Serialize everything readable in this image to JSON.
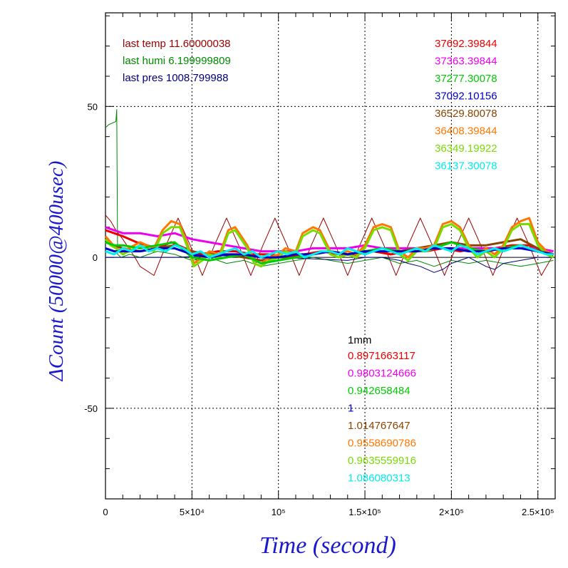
{
  "chart_data": {
    "type": "line",
    "xlabel": "Time (second)",
    "ylabel": "ΔCount (50000@400usec)",
    "xlim": [
      0,
      260000
    ],
    "ylim": [
      -80,
      81
    ],
    "grid": "dotted",
    "x_tick_labels": [
      {
        "value": 0,
        "label": "0"
      },
      {
        "value": 50000,
        "label": "5×10⁴"
      },
      {
        "value": 100000,
        "label": "10⁵"
      },
      {
        "value": 150000,
        "label": "1.5×10⁵"
      },
      {
        "value": 200000,
        "label": "2×10⁵"
      },
      {
        "value": 250000,
        "label": "2.5×10⁵"
      }
    ],
    "y_tick_labels": [
      {
        "value": 50,
        "label": "50"
      },
      {
        "value": 0,
        "label": "0"
      },
      {
        "value": -50,
        "label": "-50"
      }
    ],
    "environment_labels": [
      {
        "text": "last temp 11.60000038",
        "color": "#990000"
      },
      {
        "text": "last humi 6.199999809",
        "color": "#008800"
      },
      {
        "text": "last pres 1008.799988",
        "color": "#000077"
      }
    ],
    "counts_legend": [
      {
        "text": "37692.39844",
        "color": "#ee0000"
      },
      {
        "text": "37363.39844",
        "color": "#ee00ee"
      },
      {
        "text": "37277.30078",
        "color": "#00cc00"
      },
      {
        "text": "37092.10156",
        "color": "#0000cc"
      },
      {
        "text": "36529.80078",
        "color": "#884400"
      },
      {
        "text": "36408.39844",
        "color": "#ff7700"
      },
      {
        "text": "36349.19922",
        "color": "#77dd00"
      },
      {
        "text": "36137.30078",
        "color": "#00eeee"
      }
    ],
    "factor_header": {
      "text": "1mm",
      "color": "#000000"
    },
    "factor_legend": [
      {
        "text": "0.8971663117",
        "color": "#ee0000"
      },
      {
        "text": "0.9803124666",
        "color": "#ee00ee"
      },
      {
        "text": "0.942658484",
        "color": "#00cc00"
      },
      {
        "text": "1",
        "color": "#0000cc"
      },
      {
        "text": "1.014767647",
        "color": "#884400"
      },
      {
        "text": "0.9558690786",
        "color": "#ff7700"
      },
      {
        "text": "0.9635559916",
        "color": "#77dd00"
      },
      {
        "text": "1.086080313",
        "color": "#00eeee"
      }
    ],
    "series": [
      {
        "color": "#990000",
        "x": [
          0,
          3000,
          6000,
          10000,
          17000,
          20000,
          28000,
          35000,
          42000,
          49000,
          56000,
          63000,
          70000,
          77000,
          84000,
          91000,
          98000,
          105000,
          112000,
          119000,
          126000,
          133000,
          140000,
          147000,
          154000,
          161000,
          168000,
          175000,
          182000,
          189000,
          196000,
          203000,
          210000,
          217000,
          224000,
          231000,
          238000,
          245000,
          252000,
          259000
        ],
        "y": [
          14,
          12,
          9,
          6,
          0,
          -3,
          -6,
          4,
          13,
          4,
          -6,
          4,
          13,
          4,
          -6,
          4,
          13,
          4,
          -6,
          4,
          13,
          4,
          -6,
          4,
          13,
          4,
          -6,
          4,
          13,
          4,
          -6,
          4,
          13,
          4,
          -6,
          4,
          13,
          4,
          -6,
          1
        ]
      },
      {
        "color": "#008800",
        "x": [
          0,
          2000,
          6000,
          6500,
          7000,
          9000,
          14000,
          20000,
          30000,
          40000,
          50000,
          60000,
          70000,
          80000,
          90000,
          100000,
          110000,
          120000,
          130000,
          140000,
          150000,
          160000,
          170000,
          180000,
          190000,
          200000,
          210000,
          220000,
          230000,
          240000,
          250000,
          259000
        ],
        "y": [
          43,
          44,
          45,
          49,
          1,
          0,
          1,
          0,
          2,
          1,
          -1,
          0,
          -2,
          -1,
          -3,
          -2,
          -1,
          0,
          -1,
          -2,
          -1,
          0,
          -2,
          -1,
          -3,
          -1,
          -2,
          -1,
          -2,
          -3,
          -2,
          -1
        ]
      },
      {
        "color": "#000077",
        "x": [
          0,
          20000,
          40000,
          60000,
          80000,
          100000,
          120000,
          140000,
          150000,
          160000,
          170000,
          175000,
          182000,
          190000,
          195000,
          200000,
          210000,
          220000,
          225000,
          230000,
          240000,
          250000,
          259000
        ],
        "y": [
          0,
          0,
          0,
          0.5,
          0.5,
          0,
          -0.5,
          -1,
          0,
          0,
          -1,
          -2,
          -3,
          -5,
          -4,
          -2,
          0,
          -3,
          -4,
          -2,
          -1,
          0,
          0
        ]
      },
      {
        "color": "#ee0000",
        "x": [
          0,
          5000,
          10000,
          18000,
          30000,
          38000,
          46000,
          55000,
          65000,
          75000,
          85000,
          95000,
          105000,
          115000,
          125000,
          135000,
          145000,
          155000,
          165000,
          175000,
          185000,
          195000,
          205000,
          215000,
          225000,
          235000,
          245000,
          252000,
          259000
        ],
        "y": [
          9,
          8,
          7,
          5,
          3,
          5,
          3,
          1,
          2,
          2,
          1,
          1,
          0,
          1,
          2,
          1,
          1,
          2,
          1,
          2,
          2,
          3,
          2,
          3,
          3,
          4,
          4,
          2,
          1
        ]
      },
      {
        "color": "#ee00ee",
        "x": [
          0,
          5000,
          10000,
          20000,
          30000,
          40000,
          50000,
          60000,
          70000,
          80000,
          90000,
          100000,
          110000,
          120000,
          130000,
          140000,
          150000,
          160000,
          170000,
          180000,
          190000,
          200000,
          210000,
          220000,
          230000,
          240000,
          250000,
          259000
        ],
        "y": [
          10,
          9,
          8,
          8,
          7,
          8,
          6,
          5,
          4,
          3,
          2,
          2,
          2,
          3,
          3,
          3,
          4,
          3,
          3,
          3,
          3,
          3,
          3,
          3,
          3,
          3,
          3,
          2
        ]
      },
      {
        "color": "#884400",
        "x": [
          0,
          5000,
          10000,
          20000,
          30000,
          40000,
          50000,
          60000,
          70000,
          80000,
          90000,
          100000,
          110000,
          120000,
          130000,
          140000,
          150000,
          160000,
          170000,
          180000,
          190000,
          200000,
          210000,
          220000,
          230000,
          240000,
          250000,
          259000
        ],
        "y": [
          5,
          4,
          3,
          2,
          3,
          4,
          2,
          1,
          1,
          0,
          -1,
          0,
          0,
          1,
          2,
          1,
          2,
          3,
          2,
          3,
          4,
          5,
          4,
          4,
          5,
          6,
          3,
          1
        ]
      },
      {
        "color": "#ff7700",
        "x": [
          0,
          3000,
          6000,
          10000,
          20000,
          28000,
          33000,
          38000,
          43000,
          47000,
          51000,
          56000,
          60000,
          66000,
          71000,
          75000,
          82000,
          86000,
          90000,
          95000,
          100000,
          104000,
          110000,
          114000,
          120000,
          124000,
          130000,
          135000,
          140000,
          145000,
          150000,
          155000,
          160000,
          165000,
          170000,
          175000,
          180000,
          185000,
          190000,
          195000,
          200000,
          205000,
          210000,
          215000,
          220000,
          225000,
          230000,
          235000,
          240000,
          245000,
          250000,
          255000,
          259000
        ],
        "y": [
          7,
          5,
          3,
          2,
          5,
          3,
          9,
          12,
          11,
          5,
          -2,
          0,
          2,
          1,
          9,
          10,
          4,
          -1,
          -2,
          0,
          1,
          3,
          2,
          8,
          10,
          9,
          2,
          1,
          2,
          1,
          4,
          10,
          11,
          10,
          2,
          0,
          3,
          3,
          4,
          11,
          12,
          10,
          4,
          1,
          3,
          1,
          4,
          10,
          12,
          13,
          5,
          2,
          1
        ]
      },
      {
        "color": "#77dd00",
        "x": [
          0,
          3000,
          6000,
          10000,
          20000,
          28000,
          33000,
          38000,
          43000,
          47000,
          51000,
          56000,
          60000,
          66000,
          71000,
          75000,
          82000,
          86000,
          90000,
          95000,
          100000,
          104000,
          110000,
          114000,
          120000,
          124000,
          130000,
          135000,
          140000,
          145000,
          150000,
          155000,
          160000,
          165000,
          170000,
          175000,
          180000,
          185000,
          190000,
          195000,
          200000,
          205000,
          210000,
          215000,
          220000,
          225000,
          230000,
          235000,
          240000,
          245000,
          250000,
          255000,
          259000
        ],
        "y": [
          6,
          4,
          3,
          1,
          4,
          2,
          8,
          10,
          10,
          4,
          -3,
          -1,
          1,
          0,
          8,
          9,
          3,
          -2,
          -3,
          -1,
          0,
          2,
          1,
          7,
          9,
          8,
          1,
          0,
          1,
          0,
          3,
          9,
          10,
          9,
          1,
          -1,
          2,
          2,
          3,
          10,
          11,
          9,
          3,
          0,
          2,
          0,
          3,
          9,
          11,
          11,
          4,
          1,
          0
        ]
      },
      {
        "color": "#00cc00",
        "x": [
          0,
          5000,
          10000,
          20000,
          30000,
          40000,
          50000,
          60000,
          70000,
          80000,
          90000,
          100000,
          110000,
          120000,
          130000,
          140000,
          150000,
          160000,
          170000,
          180000,
          190000,
          200000,
          210000,
          220000,
          230000,
          240000,
          250000,
          259000
        ],
        "y": [
          5,
          4,
          4,
          3,
          4,
          5,
          0,
          -1,
          0,
          1,
          -2,
          -1,
          0,
          1,
          2,
          1,
          2,
          3,
          2,
          2,
          3,
          5,
          3,
          2,
          3,
          4,
          2,
          1
        ]
      },
      {
        "color": "#0000cc",
        "x": [
          0,
          5000,
          10000,
          20000,
          30000,
          40000,
          50000,
          60000,
          70000,
          80000,
          90000,
          100000,
          110000,
          120000,
          130000,
          140000,
          150000,
          160000,
          170000,
          180000,
          190000,
          200000,
          210000,
          220000,
          230000,
          240000,
          250000,
          259000
        ],
        "y": [
          3,
          2,
          2,
          2,
          3,
          3,
          1,
          0,
          1,
          1,
          0,
          0,
          1,
          1,
          2,
          1,
          2,
          2,
          2,
          2,
          3,
          3,
          2,
          2,
          3,
          3,
          2,
          1
        ]
      },
      {
        "color": "#00eeee",
        "x": [
          0,
          5000,
          10000,
          15000,
          20000,
          25000,
          30000,
          35000,
          40000,
          45000,
          50000,
          55000,
          60000,
          65000,
          70000,
          75000,
          80000,
          85000,
          90000,
          95000,
          100000,
          105000,
          110000,
          115000,
          120000,
          125000,
          130000,
          135000,
          140000,
          145000,
          150000,
          155000,
          160000,
          165000,
          170000,
          175000,
          180000,
          185000,
          190000,
          195000,
          200000,
          205000,
          210000,
          215000,
          220000,
          225000,
          230000,
          235000,
          240000,
          245000,
          250000,
          255000,
          259000
        ],
        "y": [
          2,
          1,
          3,
          2,
          4,
          2,
          3,
          2,
          4,
          3,
          1,
          2,
          0,
          1,
          2,
          3,
          1,
          2,
          0,
          1,
          2,
          1,
          2,
          0,
          1,
          2,
          2,
          1,
          3,
          2,
          1,
          2,
          3,
          2,
          1,
          2,
          3,
          2,
          4,
          3,
          2,
          4,
          3,
          1,
          2,
          3,
          2,
          3,
          4,
          3,
          2,
          1,
          1
        ]
      }
    ]
  }
}
